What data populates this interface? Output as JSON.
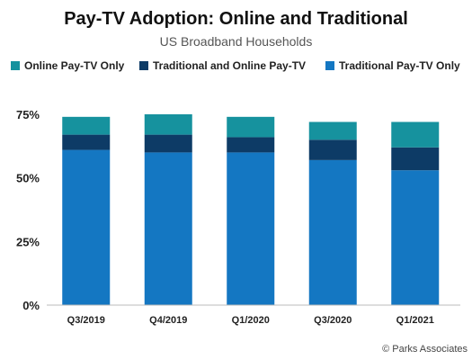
{
  "chart_data": {
    "type": "bar",
    "stacked": true,
    "title": "Pay-TV Adoption: Online and Traditional",
    "subtitle": "US Broadband Households",
    "source": "© Parks Associates",
    "categories": [
      "Q3/2019",
      "Q4/2019",
      "Q1/2020",
      "Q3/2020",
      "Q1/2021"
    ],
    "ylim": [
      0,
      75
    ],
    "yticks": [
      0,
      25,
      50,
      75
    ],
    "ytick_labels": [
      "0%",
      "25%",
      "50%",
      "75%"
    ],
    "legend_position": "top",
    "grid": false,
    "series": [
      {
        "name": "Traditional Pay-TV Only",
        "color": "#1477c2",
        "values": [
          61,
          60,
          60,
          57,
          53
        ]
      },
      {
        "name": "Traditional and Online Pay-TV",
        "color": "#0d3b66",
        "values": [
          6,
          7,
          6,
          8,
          9
        ]
      },
      {
        "name": "Online Pay-TV Only",
        "color": "#16929e",
        "values": [
          7,
          8,
          8,
          7,
          10
        ]
      }
    ],
    "legend_order": [
      2,
      1,
      0
    ]
  }
}
